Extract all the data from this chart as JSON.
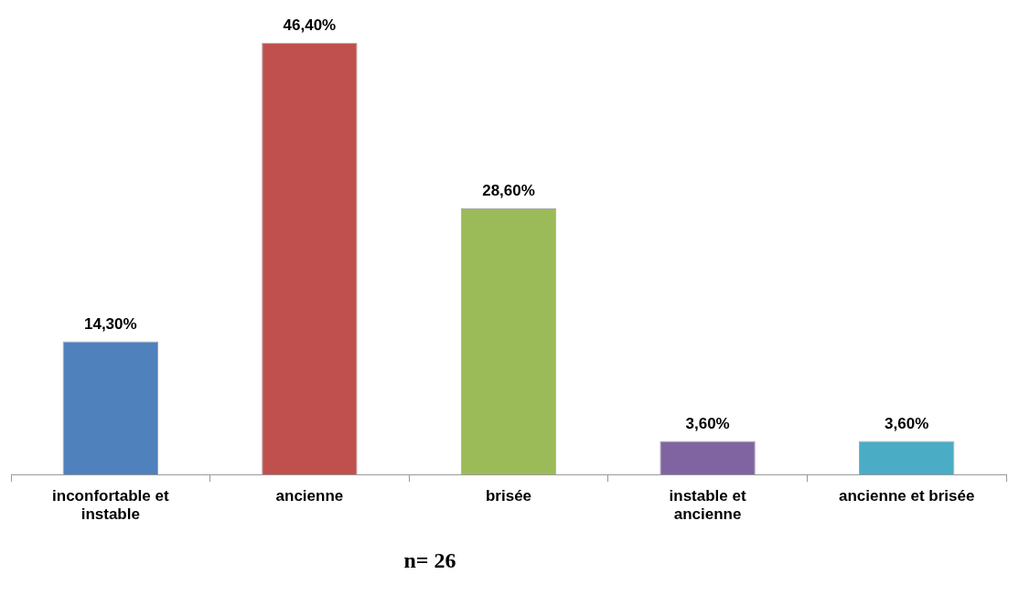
{
  "chart_data": {
    "type": "bar",
    "categories": [
      "inconfortable et instable",
      "ancienne",
      "brisée",
      "instable et ancienne",
      "ancienne et brisée"
    ],
    "values": [
      14.3,
      46.4,
      28.6,
      3.6,
      3.6
    ],
    "value_labels": [
      "14,30%",
      "46,40%",
      "28,60%",
      "3,60%",
      "3,60%"
    ],
    "colors": [
      "#4f81bd",
      "#c0504d",
      "#9bbb59",
      "#8064a2",
      "#4bacc6"
    ],
    "grid": false,
    "legend": false,
    "annotations": [
      "n= 26"
    ]
  }
}
